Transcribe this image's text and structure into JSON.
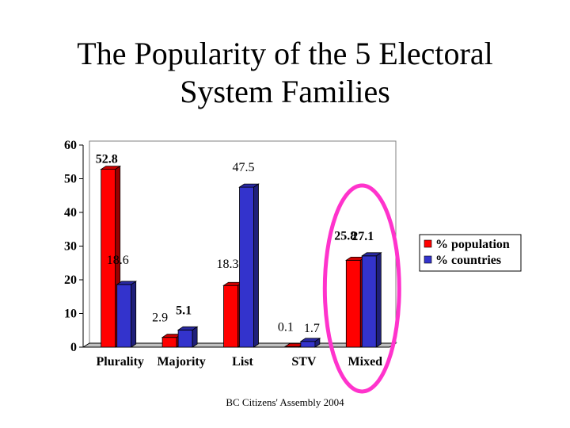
{
  "title_line1": "The Popularity of the 5 Electoral",
  "title_line2": "System Families",
  "footer": "BC Citizens' Assembly 2004",
  "chart_data": {
    "type": "bar",
    "title": "",
    "xlabel": "",
    "ylabel": "",
    "categories": [
      "Plurality",
      "Majority",
      "List",
      "STV",
      "Mixed"
    ],
    "series": [
      {
        "name": "% population",
        "values": [
          52.8,
          2.9,
          18.3,
          0.1,
          25.8
        ],
        "labels": [
          "52.8",
          "2.9",
          "18.3",
          "0.1",
          "25.8"
        ],
        "color": "#ff0000"
      },
      {
        "name": "% countries",
        "values": [
          18.6,
          5.1,
          47.5,
          1.7,
          27.1
        ],
        "labels": [
          "18.6",
          "5.1",
          "47.5",
          "1.7",
          "27.1"
        ],
        "color": "#3333cc"
      }
    ],
    "ylim": [
      0,
      60
    ],
    "yticks": [
      0,
      10,
      20,
      30,
      40,
      50,
      60
    ],
    "grid": false,
    "legend": "right",
    "highlight": {
      "category": "Mixed",
      "shape": "ellipse",
      "color": "#ff33cc"
    }
  }
}
